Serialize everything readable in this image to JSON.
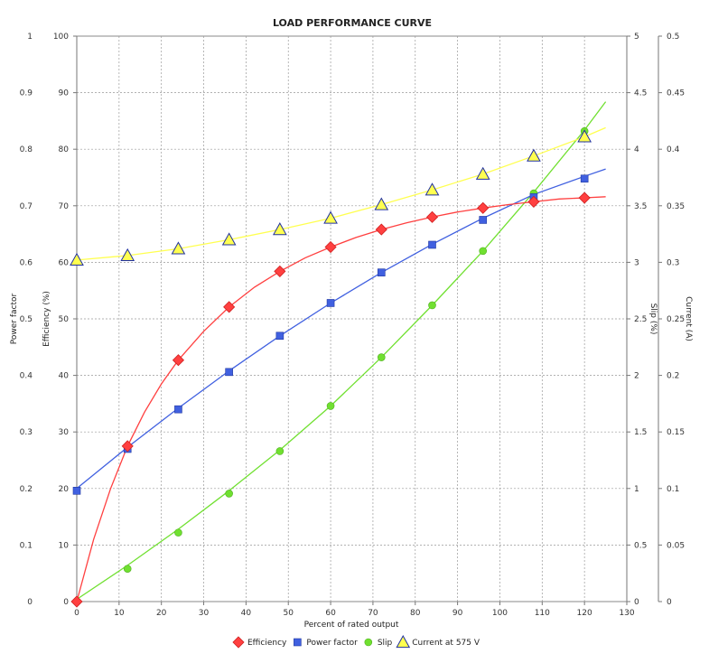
{
  "chart_data": {
    "type": "line",
    "title": "LOAD PERFORMANCE CURVE",
    "xlabel": "Percent of rated output",
    "xlim": [
      0,
      130
    ],
    "x_ticks": [
      "0",
      "10",
      "20",
      "30",
      "40",
      "50",
      "60",
      "70",
      "80",
      "90",
      "100",
      "110",
      "120",
      "130"
    ],
    "grid": true,
    "legend_position": "bottom",
    "axes": {
      "power_factor": {
        "label": "Power factor",
        "lim": [
          0,
          1
        ],
        "ticks": [
          "0",
          "0.1",
          "0.2",
          "0.3",
          "0.4",
          "0.5",
          "0.6",
          "0.7",
          "0.8",
          "0.9",
          "1"
        ]
      },
      "efficiency": {
        "label": "Efficiency (%)",
        "lim": [
          0,
          100
        ],
        "ticks": [
          "0",
          "10",
          "20",
          "30",
          "40",
          "50",
          "60",
          "70",
          "80",
          "90",
          "100"
        ]
      },
      "slip": {
        "label": "Slip (%)",
        "lim": [
          0,
          5
        ],
        "ticks": [
          "0",
          "0.5",
          "1",
          "1.5",
          "2",
          "2.5",
          "3",
          "3.5",
          "4",
          "4.5",
          "5"
        ]
      },
      "current": {
        "label": "Current (A)",
        "lim": [
          0,
          0.5
        ],
        "ticks": [
          "0",
          "0.05",
          "0.1",
          "0.15",
          "0.2",
          "0.25",
          "0.3",
          "0.35",
          "0.4",
          "0.45",
          "0.5"
        ]
      }
    },
    "series": [
      {
        "name": "Efficiency",
        "axis": "efficiency",
        "color": "#ff4040",
        "marker": "diamond",
        "x": [
          0,
          12,
          24,
          36,
          48,
          60,
          72,
          84,
          96,
          108,
          120
        ],
        "y": [
          0,
          27.5,
          42.7,
          52.1,
          58.4,
          62.7,
          65.8,
          68.0,
          69.6,
          70.7,
          71.4
        ],
        "curve_x": [
          0,
          4,
          8,
          12,
          16,
          20,
          24,
          30,
          36,
          42,
          48,
          54,
          60,
          66,
          72,
          78,
          84,
          90,
          96,
          102,
          108,
          114,
          120,
          125
        ],
        "curve_y": [
          0,
          11,
          20,
          27.5,
          33.5,
          38.5,
          42.7,
          47.8,
          52.1,
          55.6,
          58.4,
          60.8,
          62.7,
          64.4,
          65.8,
          67.0,
          68.0,
          68.9,
          69.6,
          70.2,
          70.7,
          71.2,
          71.4,
          71.6
        ]
      },
      {
        "name": "Power factor",
        "axis": "power_factor",
        "color": "#4060e0",
        "marker": "square",
        "x": [
          0,
          12,
          24,
          36,
          48,
          60,
          72,
          84,
          96,
          108,
          120
        ],
        "y": [
          0.196,
          0.27,
          0.34,
          0.406,
          0.47,
          0.528,
          0.582,
          0.631,
          0.675,
          0.715,
          0.748
        ],
        "curve_x": [
          0,
          12,
          24,
          36,
          48,
          60,
          72,
          84,
          96,
          108,
          120,
          125
        ],
        "curve_y": [
          0.2,
          0.273,
          0.342,
          0.408,
          0.47,
          0.528,
          0.582,
          0.632,
          0.678,
          0.72,
          0.752,
          0.765
        ]
      },
      {
        "name": "Slip",
        "axis": "slip",
        "color": "#70e030",
        "marker": "circle",
        "x": [
          0,
          12,
          24,
          36,
          48,
          60,
          72,
          84,
          96,
          108,
          120
        ],
        "y": [
          0,
          0.29,
          0.61,
          0.955,
          1.33,
          1.73,
          2.16,
          2.62,
          3.1,
          3.61,
          4.16
        ],
        "curve_x": [
          0,
          12,
          24,
          36,
          48,
          60,
          72,
          84,
          96,
          108,
          120,
          125
        ],
        "curve_y": [
          0.02,
          0.32,
          0.64,
          0.98,
          1.34,
          1.73,
          2.16,
          2.62,
          3.1,
          3.62,
          4.17,
          4.42
        ]
      },
      {
        "name": "Current at 575 V",
        "axis": "current",
        "color": "#ffff50",
        "marker": "triangle",
        "x": [
          0,
          12,
          24,
          36,
          48,
          60,
          72,
          84,
          96,
          108,
          120
        ],
        "y": [
          0.302,
          0.306,
          0.312,
          0.32,
          0.329,
          0.339,
          0.351,
          0.364,
          0.378,
          0.394,
          0.411
        ],
        "curve_x": [
          0,
          12,
          24,
          36,
          48,
          60,
          72,
          84,
          96,
          108,
          120,
          125
        ],
        "curve_y": [
          0.302,
          0.306,
          0.312,
          0.32,
          0.329,
          0.339,
          0.351,
          0.364,
          0.378,
          0.394,
          0.411,
          0.419
        ]
      }
    ]
  }
}
